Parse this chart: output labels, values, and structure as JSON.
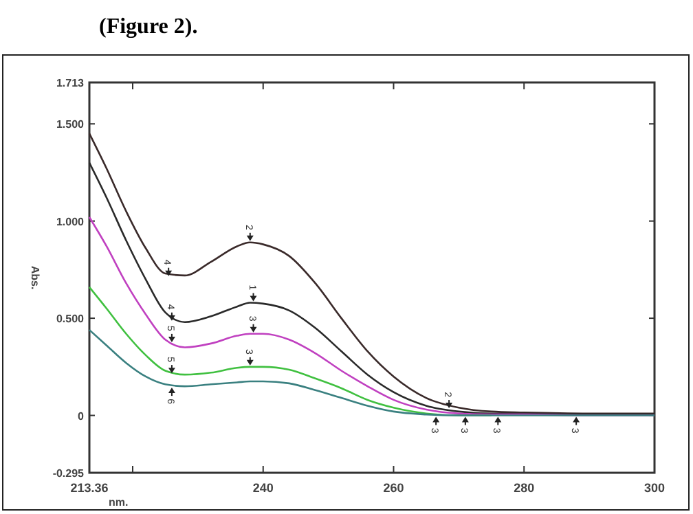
{
  "chart_data": {
    "type": "line",
    "xlabel": "nm.",
    "ylabel": "Abs.",
    "x": [
      213.36,
      216,
      219,
      222,
      225,
      228,
      232,
      236,
      238,
      240,
      244,
      248,
      252,
      256,
      260,
      265,
      270,
      275,
      280,
      290,
      300
    ],
    "xlim": [
      213.36,
      300
    ],
    "xticks": [
      213.36,
      {
        "value": 220,
        "label": null
      },
      240,
      260,
      280,
      300
    ],
    "ylim": [
      -0.295,
      1.713
    ],
    "yticks": [
      -0.295,
      0,
      {
        "value": 0.5,
        "label": "0.500"
      },
      {
        "value": 1,
        "label": "1.000"
      },
      {
        "value": 1.5,
        "label": "1.500"
      },
      1.713
    ],
    "series": [
      {
        "color": "#3a2a2a",
        "values": [
          1.45,
          1.27,
          1.05,
          0.86,
          0.73,
          0.72,
          0.79,
          0.87,
          0.89,
          0.88,
          0.82,
          0.68,
          0.5,
          0.33,
          0.2,
          0.09,
          0.04,
          0.02,
          0.015,
          0.01,
          0.01
        ]
      },
      {
        "color": "#2a2a2a",
        "values": [
          1.3,
          1.12,
          0.9,
          0.7,
          0.53,
          0.48,
          0.51,
          0.56,
          0.58,
          0.575,
          0.54,
          0.45,
          0.33,
          0.21,
          0.12,
          0.05,
          0.02,
          0.01,
          0.01,
          0.005,
          0.005
        ]
      },
      {
        "color": "#c040c0",
        "values": [
          1.02,
          0.87,
          0.68,
          0.52,
          0.39,
          0.35,
          0.37,
          0.41,
          0.42,
          0.42,
          0.39,
          0.32,
          0.23,
          0.15,
          0.08,
          0.03,
          0.01,
          0.005,
          0.005,
          0,
          0
        ]
      },
      {
        "color": "#40c040",
        "values": [
          0.66,
          0.55,
          0.42,
          0.31,
          0.23,
          0.21,
          0.22,
          0.245,
          0.25,
          0.25,
          0.235,
          0.19,
          0.14,
          0.08,
          0.04,
          0.01,
          0,
          0,
          null,
          null,
          null
        ]
      },
      {
        "color": "#3a8080",
        "values": [
          0.44,
          0.36,
          0.27,
          0.2,
          0.16,
          0.15,
          0.16,
          0.17,
          0.175,
          0.175,
          0.165,
          0.13,
          0.09,
          0.05,
          0.02,
          0.005,
          0,
          0,
          0,
          0,
          0
        ]
      }
    ],
    "annotations": [
      "(Figure 2).",
      {
        "text": "2",
        "x": 238,
        "y": 0.89
      },
      {
        "text": "4",
        "x": 225.5,
        "y": 0.71
      },
      {
        "text": "1",
        "x": 238.5,
        "y": 0.58
      },
      {
        "text": "4",
        "x": 226,
        "y": 0.48
      },
      {
        "text": "3",
        "x": 238.5,
        "y": 0.42
      },
      {
        "text": "5",
        "x": 226,
        "y": 0.37
      },
      {
        "text": "3",
        "x": 238,
        "y": 0.25
      },
      {
        "text": "5",
        "x": 226,
        "y": 0.21
      },
      {
        "text": "6",
        "x": 226,
        "y": 0.15
      },
      {
        "text": "2",
        "x": 268.5,
        "y": 0.03
      },
      {
        "text": "3",
        "x": 266.5,
        "y": 0
      },
      {
        "text": "3",
        "x": 271,
        "y": 0
      },
      {
        "text": "3",
        "x": 276,
        "y": 0
      },
      {
        "text": "3",
        "x": 288,
        "y": 0
      }
    ],
    "grid": false,
    "marker": "none",
    "line_style": "solid"
  }
}
